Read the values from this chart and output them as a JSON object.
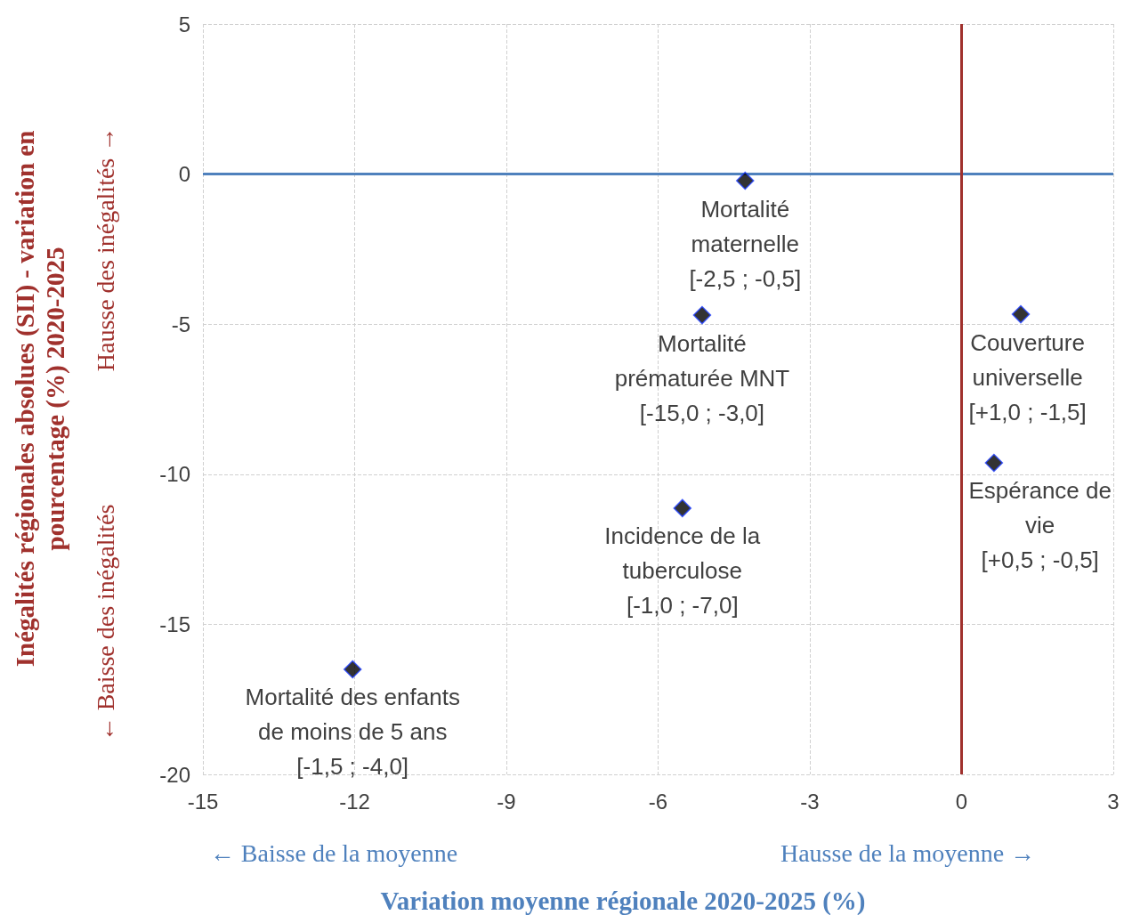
{
  "chart_data": {
    "type": "scatter",
    "xlabel": "Variation moyenne régionale 2020-2025 (%)",
    "ylabel": "Inégalités régionales absolues (SII) - variation en\npourcentage (%) 2020-2025",
    "series": [
      {
        "color": "#000000",
        "x": [
          -4.28,
          -5.13,
          1.17,
          0.64,
          -5.52,
          -12.04
        ],
        "values": [
          -0.22,
          -4.7,
          -4.67,
          -9.62,
          -11.13,
          -16.5
        ]
      }
    ],
    "marker": "diamond",
    "xlim": [
      -15,
      3
    ],
    "xticks": [
      -15,
      -12,
      -9,
      -6,
      -3,
      0,
      3
    ],
    "ylim": [
      -20,
      5
    ],
    "yticks": [
      -20,
      -15,
      -10,
      -5,
      0,
      5
    ],
    "grid": true,
    "ref_lines": [
      {
        "axis": "y",
        "value": 0,
        "color": "#4f81bd"
      },
      {
        "axis": "x",
        "value": 0,
        "color": "#a0312d"
      }
    ],
    "annotations": [
      {
        "text": "Mortalité\nmaternelle\n[-2,5 ; -0,5]",
        "x": -4.28,
        "y": -0.22
      },
      {
        "text": "Mortalité\nprématurée MNT\n[-15,0 ; -3,0]",
        "x": -5.13,
        "y": -4.7
      },
      {
        "text": "Couverture\nuniverselle\n[+1,0 ; -1,5]",
        "x": 1.17,
        "y": -4.67
      },
      {
        "text": "Espérance de\nvie\n[+0,5 ; -0,5]",
        "x": 0.64,
        "y": -9.62
      },
      {
        "text": "Incidence de la\ntuberculose\n[-1,0 ; -7,0]",
        "x": -5.52,
        "y": -11.13
      },
      {
        "text": "Mortalité des enfants\nde moins de 5 ans\n[-1,5 ; -4,0]",
        "x": -12.04,
        "y": -16.5
      },
      "← Baisse de la moyenne",
      "Hausse de la moyenne →",
      "← Baisse des inégalités",
      "Hausse des inégalités →"
    ]
  }
}
